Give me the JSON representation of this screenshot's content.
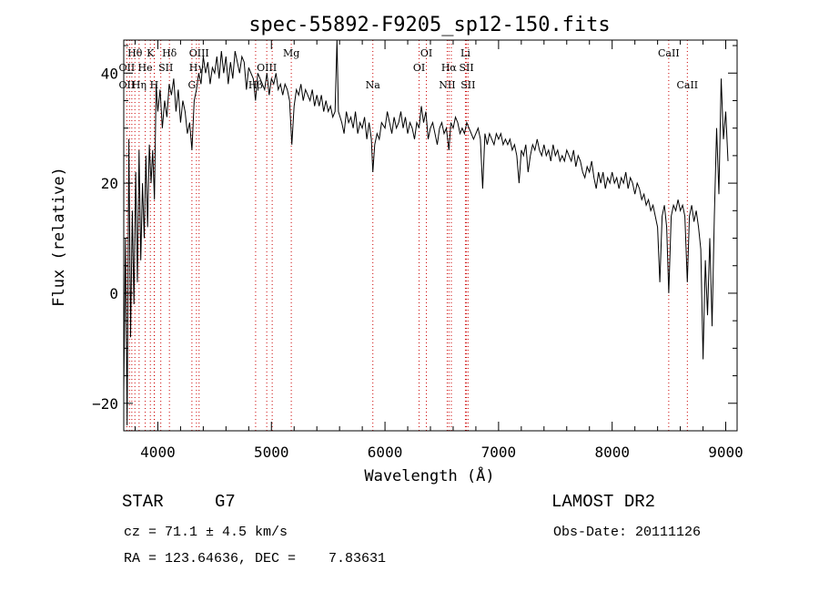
{
  "chart_data": {
    "type": "line",
    "title": "spec-55892-F9205_sp12-150.fits",
    "xlabel": "Wavelength (Å)",
    "ylabel": "Flux (relative)",
    "xlim": [
      3700,
      9100
    ],
    "ylim": [
      -25,
      46
    ],
    "x_ticks": [
      4000,
      5000,
      6000,
      7000,
      8000,
      9000
    ],
    "y_ticks": [
      -20,
      0,
      20,
      40
    ],
    "grid": false,
    "series": [
      {
        "color": "#000000",
        "points": [
          [
            3700,
            -18
          ],
          [
            3715,
            10
          ],
          [
            3730,
            -24
          ],
          [
            3745,
            28
          ],
          [
            3760,
            -8
          ],
          [
            3775,
            15
          ],
          [
            3790,
            -2
          ],
          [
            3805,
            22
          ],
          [
            3820,
            2
          ],
          [
            3835,
            26
          ],
          [
            3850,
            6
          ],
          [
            3865,
            20
          ],
          [
            3880,
            10
          ],
          [
            3895,
            25
          ],
          [
            3910,
            12
          ],
          [
            3925,
            27
          ],
          [
            3940,
            20
          ],
          [
            3955,
            26
          ],
          [
            3970,
            17
          ],
          [
            3985,
            38
          ],
          [
            4000,
            33
          ],
          [
            4020,
            37
          ],
          [
            4040,
            30
          ],
          [
            4060,
            35
          ],
          [
            4080,
            32
          ],
          [
            4100,
            38
          ],
          [
            4120,
            36
          ],
          [
            4140,
            39
          ],
          [
            4160,
            33
          ],
          [
            4180,
            37
          ],
          [
            4200,
            31
          ],
          [
            4220,
            35
          ],
          [
            4240,
            33
          ],
          [
            4260,
            29
          ],
          [
            4280,
            31
          ],
          [
            4300,
            26
          ],
          [
            4320,
            35
          ],
          [
            4340,
            37
          ],
          [
            4360,
            40
          ],
          [
            4380,
            38
          ],
          [
            4400,
            43
          ],
          [
            4420,
            40
          ],
          [
            4440,
            42
          ],
          [
            4460,
            38
          ],
          [
            4480,
            41
          ],
          [
            4500,
            40
          ],
          [
            4520,
            43
          ],
          [
            4540,
            39
          ],
          [
            4560,
            44
          ],
          [
            4580,
            40
          ],
          [
            4600,
            43
          ],
          [
            4620,
            38
          ],
          [
            4640,
            42
          ],
          [
            4660,
            39
          ],
          [
            4680,
            44
          ],
          [
            4700,
            42
          ],
          [
            4720,
            40
          ],
          [
            4740,
            43
          ],
          [
            4760,
            42
          ],
          [
            4780,
            37
          ],
          [
            4800,
            41
          ],
          [
            4820,
            40
          ],
          [
            4840,
            39
          ],
          [
            4860,
            35
          ],
          [
            4880,
            40
          ],
          [
            4900,
            39
          ],
          [
            4920,
            38
          ],
          [
            4940,
            37
          ],
          [
            4960,
            40
          ],
          [
            4980,
            36
          ],
          [
            5000,
            39
          ],
          [
            5020,
            38
          ],
          [
            5040,
            40
          ],
          [
            5060,
            37
          ],
          [
            5080,
            38
          ],
          [
            5100,
            36
          ],
          [
            5120,
            38
          ],
          [
            5140,
            37
          ],
          [
            5160,
            35
          ],
          [
            5180,
            27
          ],
          [
            5200,
            34
          ],
          [
            5220,
            37
          ],
          [
            5240,
            36
          ],
          [
            5260,
            38
          ],
          [
            5280,
            35
          ],
          [
            5300,
            37
          ],
          [
            5320,
            36
          ],
          [
            5340,
            35
          ],
          [
            5360,
            37
          ],
          [
            5380,
            34
          ],
          [
            5400,
            36
          ],
          [
            5420,
            34
          ],
          [
            5440,
            36
          ],
          [
            5460,
            33
          ],
          [
            5480,
            35
          ],
          [
            5500,
            33
          ],
          [
            5520,
            34
          ],
          [
            5540,
            32
          ],
          [
            5560,
            33
          ],
          [
            5577,
            46
          ],
          [
            5590,
            33
          ],
          [
            5620,
            31
          ],
          [
            5640,
            29
          ],
          [
            5660,
            33
          ],
          [
            5680,
            31
          ],
          [
            5700,
            32
          ],
          [
            5720,
            30
          ],
          [
            5740,
            33
          ],
          [
            5760,
            29
          ],
          [
            5780,
            31
          ],
          [
            5800,
            30
          ],
          [
            5820,
            32
          ],
          [
            5840,
            28
          ],
          [
            5860,
            31
          ],
          [
            5880,
            28
          ],
          [
            5893,
            22
          ],
          [
            5910,
            27
          ],
          [
            5930,
            29
          ],
          [
            5950,
            28
          ],
          [
            5970,
            31
          ],
          [
            6000,
            30
          ],
          [
            6020,
            33
          ],
          [
            6040,
            31
          ],
          [
            6060,
            29
          ],
          [
            6080,
            32
          ],
          [
            6100,
            30
          ],
          [
            6120,
            31
          ],
          [
            6140,
            33
          ],
          [
            6160,
            30
          ],
          [
            6180,
            32
          ],
          [
            6200,
            29
          ],
          [
            6220,
            31
          ],
          [
            6240,
            30
          ],
          [
            6260,
            28
          ],
          [
            6280,
            31
          ],
          [
            6300,
            30
          ],
          [
            6320,
            34
          ],
          [
            6340,
            31
          ],
          [
            6360,
            33
          ],
          [
            6380,
            28
          ],
          [
            6400,
            30
          ],
          [
            6420,
            31
          ],
          [
            6440,
            29
          ],
          [
            6460,
            27
          ],
          [
            6480,
            30
          ],
          [
            6500,
            31
          ],
          [
            6520,
            29
          ],
          [
            6540,
            30
          ],
          [
            6563,
            26
          ],
          [
            6580,
            31
          ],
          [
            6600,
            30
          ],
          [
            6620,
            32
          ],
          [
            6640,
            31
          ],
          [
            6660,
            29
          ],
          [
            6680,
            30
          ],
          [
            6700,
            29
          ],
          [
            6720,
            31
          ],
          [
            6740,
            30
          ],
          [
            6760,
            29
          ],
          [
            6780,
            28
          ],
          [
            6800,
            29
          ],
          [
            6820,
            30
          ],
          [
            6840,
            28
          ],
          [
            6860,
            19
          ],
          [
            6880,
            29
          ],
          [
            6900,
            27
          ],
          [
            6920,
            29
          ],
          [
            6940,
            28
          ],
          [
            6960,
            27
          ],
          [
            6980,
            29
          ],
          [
            7000,
            28
          ],
          [
            7020,
            29
          ],
          [
            7040,
            27
          ],
          [
            7060,
            28
          ],
          [
            7080,
            27
          ],
          [
            7100,
            28
          ],
          [
            7120,
            26
          ],
          [
            7140,
            27
          ],
          [
            7160,
            25
          ],
          [
            7180,
            20
          ],
          [
            7200,
            26
          ],
          [
            7220,
            25
          ],
          [
            7240,
            27
          ],
          [
            7260,
            22
          ],
          [
            7280,
            25
          ],
          [
            7300,
            27
          ],
          [
            7320,
            26
          ],
          [
            7340,
            28
          ],
          [
            7360,
            26
          ],
          [
            7380,
            25
          ],
          [
            7400,
            27
          ],
          [
            7420,
            25
          ],
          [
            7440,
            26
          ],
          [
            7460,
            24
          ],
          [
            7480,
            27
          ],
          [
            7500,
            25
          ],
          [
            7520,
            26
          ],
          [
            7540,
            24
          ],
          [
            7560,
            25
          ],
          [
            7580,
            24
          ],
          [
            7600,
            26
          ],
          [
            7620,
            25
          ],
          [
            7640,
            24
          ],
          [
            7660,
            26
          ],
          [
            7680,
            23
          ],
          [
            7700,
            25
          ],
          [
            7720,
            24
          ],
          [
            7740,
            22
          ],
          [
            7760,
            21
          ],
          [
            7780,
            23
          ],
          [
            7800,
            22
          ],
          [
            7820,
            24
          ],
          [
            7840,
            21
          ],
          [
            7860,
            19
          ],
          [
            7880,
            22
          ],
          [
            7900,
            20
          ],
          [
            7920,
            22
          ],
          [
            7940,
            19
          ],
          [
            7960,
            21
          ],
          [
            7980,
            20
          ],
          [
            8000,
            22
          ],
          [
            8020,
            20
          ],
          [
            8040,
            21
          ],
          [
            8060,
            19
          ],
          [
            8080,
            21
          ],
          [
            8100,
            20
          ],
          [
            8120,
            22
          ],
          [
            8140,
            19
          ],
          [
            8160,
            21
          ],
          [
            8180,
            20
          ],
          [
            8200,
            18
          ],
          [
            8220,
            20
          ],
          [
            8240,
            19
          ],
          [
            8260,
            17
          ],
          [
            8280,
            18
          ],
          [
            8300,
            16
          ],
          [
            8320,
            17
          ],
          [
            8340,
            15
          ],
          [
            8360,
            16
          ],
          [
            8380,
            14
          ],
          [
            8400,
            12
          ],
          [
            8420,
            2
          ],
          [
            8440,
            14
          ],
          [
            8460,
            16
          ],
          [
            8480,
            12
          ],
          [
            8498,
            0
          ],
          [
            8520,
            14
          ],
          [
            8540,
            16
          ],
          [
            8560,
            15
          ],
          [
            8580,
            17
          ],
          [
            8600,
            15
          ],
          [
            8620,
            16
          ],
          [
            8640,
            14
          ],
          [
            8662,
            2
          ],
          [
            8680,
            14
          ],
          [
            8700,
            16
          ],
          [
            8720,
            13
          ],
          [
            8740,
            15
          ],
          [
            8760,
            12
          ],
          [
            8780,
            8
          ],
          [
            8800,
            -12
          ],
          [
            8820,
            6
          ],
          [
            8840,
            -4
          ],
          [
            8860,
            10
          ],
          [
            8880,
            -6
          ],
          [
            8900,
            14
          ],
          [
            8920,
            30
          ],
          [
            8940,
            18
          ],
          [
            8960,
            39
          ],
          [
            8980,
            28
          ],
          [
            9000,
            33
          ],
          [
            9020,
            24
          ]
        ]
      }
    ],
    "line_markers": {
      "color": "#cc0000",
      "dotted_wavelengths": [
        3727,
        3750,
        3771,
        3798,
        3835,
        3889,
        3934,
        3968,
        3970,
        4026,
        4102,
        4300,
        4340,
        4363,
        4861,
        4959,
        5007,
        5175,
        5893,
        6300,
        6364,
        6548,
        6563,
        6584,
        6708,
        6717,
        6731,
        8498,
        8662
      ],
      "labels": [
        {
          "text": "Hθ",
          "wl": 3798,
          "row": 0
        },
        {
          "text": "K",
          "wl": 3934,
          "row": 0
        },
        {
          "text": "Hδ",
          "wl": 4102,
          "row": 0
        },
        {
          "text": "OIII",
          "wl": 4363,
          "row": 0
        },
        {
          "text": "Mg",
          "wl": 5175,
          "row": 0
        },
        {
          "text": "OI",
          "wl": 6364,
          "row": 0
        },
        {
          "text": "Li",
          "wl": 6708,
          "row": 0
        },
        {
          "text": "CaII",
          "wl": 8498,
          "row": 0
        },
        {
          "text": "OII",
          "wl": 3727,
          "row": 1
        },
        {
          "text": "He",
          "wl": 3889,
          "row": 1
        },
        {
          "text": "SII",
          "wl": 4070,
          "row": 1
        },
        {
          "text": "Hγ",
          "wl": 4340,
          "row": 1
        },
        {
          "text": "OIII",
          "wl": 4959,
          "row": 1
        },
        {
          "text": "OI",
          "wl": 6300,
          "row": 1
        },
        {
          "text": "Hα",
          "wl": 6563,
          "row": 1
        },
        {
          "text": "SII",
          "wl": 6717,
          "row": 1
        },
        {
          "text": "OII",
          "wl": 3727,
          "row": 2
        },
        {
          "text": "Hη",
          "wl": 3835,
          "row": 2
        },
        {
          "text": "H",
          "wl": 3968,
          "row": 2
        },
        {
          "text": "G",
          "wl": 4300,
          "row": 2
        },
        {
          "text": "Hβ",
          "wl": 4861,
          "row": 2
        },
        {
          "text": "Na",
          "wl": 5893,
          "row": 2
        },
        {
          "text": "NII",
          "wl": 6548,
          "row": 2
        },
        {
          "text": "SII",
          "wl": 6731,
          "row": 2
        },
        {
          "text": "CaII",
          "wl": 8662,
          "row": 2
        }
      ]
    }
  },
  "info": {
    "object_type": "STAR",
    "subclass": "G7",
    "survey": "LAMOST DR2",
    "cz": "cz = 71.1 ± 4.5 km/s",
    "obs_date": "Obs-Date: 20111126",
    "coords": "RA = 123.64636, DEC =    7.83631"
  }
}
